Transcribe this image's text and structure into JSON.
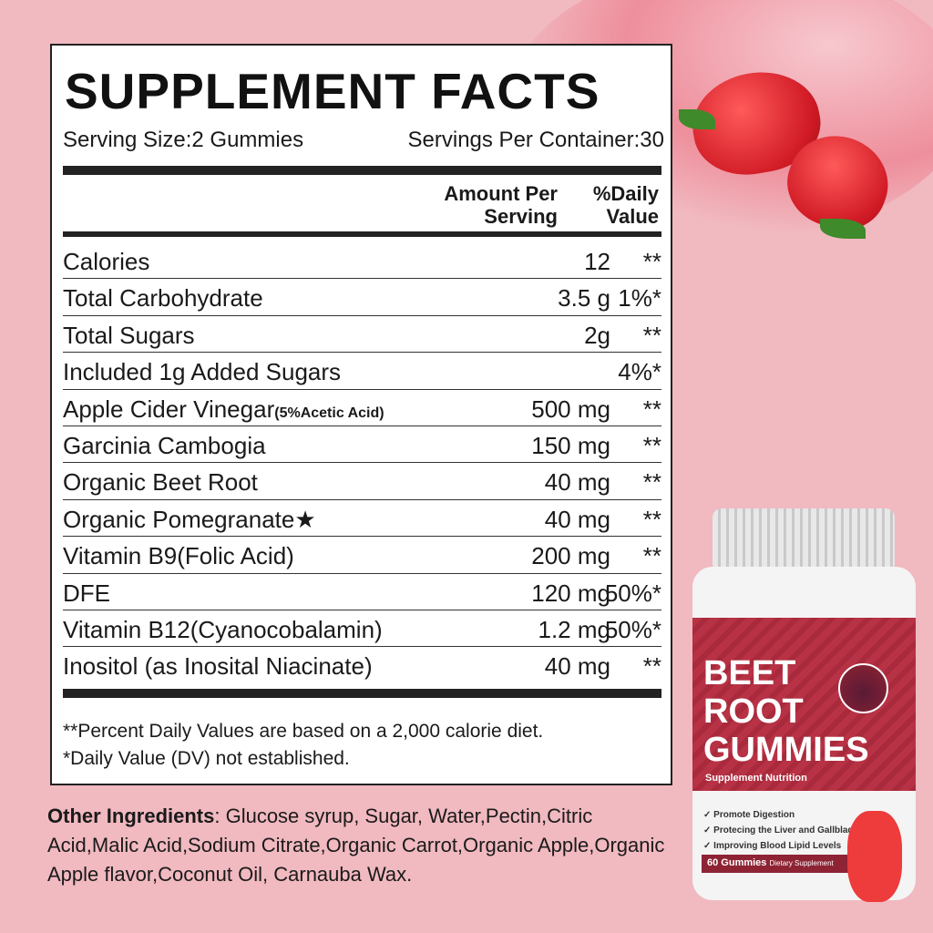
{
  "panel": {
    "title": "SUPPLEMENT FACTS",
    "serving_size": "Serving Size:2 Gummies",
    "servings_per_container": "Servings Per Container:30",
    "headers": {
      "amount": [
        "Amount Per",
        "Serving"
      ],
      "dv": [
        "%Daily",
        "Value"
      ]
    },
    "rows": [
      {
        "name": "Calories",
        "note": "",
        "amount": "12",
        "dv": "**"
      },
      {
        "name": "Total Carbohydrate",
        "note": "",
        "amount": "3.5 g",
        "dv": "1%*"
      },
      {
        "name": "Total Sugars",
        "note": "",
        "amount": "2g",
        "dv": "**"
      },
      {
        "name": "Included 1g Added Sugars",
        "note": "",
        "amount": "",
        "dv": "4%*"
      },
      {
        "name": "Apple Cider Vinegar",
        "note": "(5%Acetic Acid)",
        "amount": "500 mg",
        "dv": "**"
      },
      {
        "name": "Garcinia Cambogia",
        "note": "",
        "amount": "150 mg",
        "dv": "**"
      },
      {
        "name": "Organic Beet Root",
        "note": "",
        "amount": "40 mg",
        "dv": "**"
      },
      {
        "name": "Organic Pomegranate★",
        "note": "",
        "amount": "40 mg",
        "dv": "**"
      },
      {
        "name": "Vitamin B9(Folic Acid)",
        "note": "",
        "amount": "200 mg",
        "dv": "**"
      },
      {
        "name": "DFE",
        "note": "",
        "amount": "120 mg",
        "dv": "50%*"
      },
      {
        "name": "Vitamin B12(Cyanocobalamin)",
        "note": "",
        "amount": "1.2 mg",
        "dv": "50%*"
      },
      {
        "name": "Inositol (as Inosital Niacinate)",
        "note": "",
        "amount": "40 mg",
        "dv": "**"
      }
    ],
    "footnotes": [
      "**Percent Daily Values are based on a 2,000 calorie diet.",
      "*Daily Value (DV) not established."
    ]
  },
  "other_ingredients": {
    "label": "Other Ingredients",
    "text": ": Glucose syrup, Sugar, Water,Pectin,Citric Acid,Malic Acid,Sodium Citrate,Organic Carrot,Organic Apple,Organic Apple flavor,Coconut Oil, Carnauba Wax."
  },
  "bottle": {
    "brand_lines": [
      "BEET",
      "ROOT",
      "GUMMIES"
    ],
    "subtitle": "Supplement Nutrition",
    "benefits": [
      "Promote Digestion",
      "Protecing the Liver and Gallbladder",
      "Improving Blood Lipid Levels"
    ],
    "count": "60 Gummies",
    "count_note": "Dietary Supplement",
    "label_color": "#b83245"
  },
  "colors": {
    "background": "#f1b9c0"
  }
}
